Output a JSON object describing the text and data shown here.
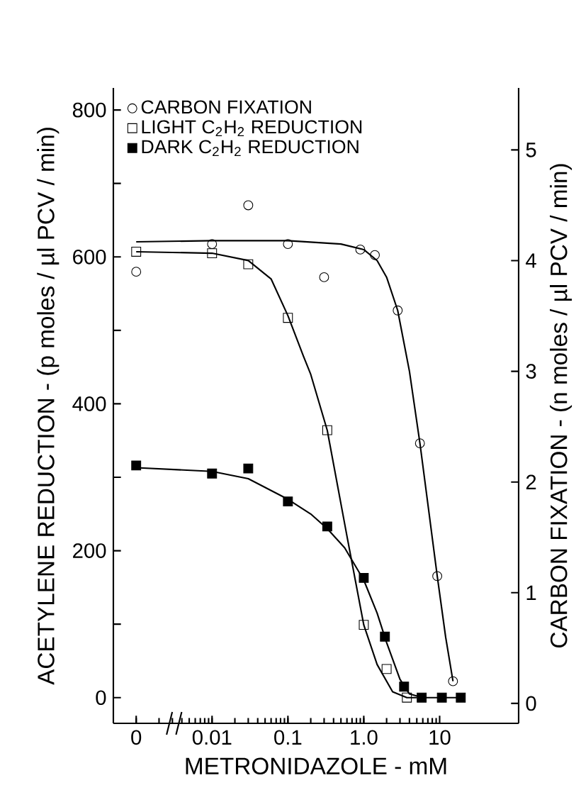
{
  "chart_data": {
    "type": "scatter",
    "xlabel": "METRONIDAZOLE - mM",
    "ylabel": "ACETYLENE REDUCTION - (p moles / µl PCV / min)",
    "y2label": "CARBON FIXATION - (n moles / µl PCV / min)",
    "log": "x",
    "xlim": [
      0.0005,
      110
    ],
    "xticks": [
      {
        "value": 0.001,
        "label": "0"
      },
      0.01,
      0.1,
      {
        "value": 1.0,
        "label": "1.0"
      },
      10
    ],
    "ylim": [
      -35,
      830
    ],
    "yticks": [
      0,
      {
        "value": 100,
        "label": null
      },
      200,
      {
        "value": 300,
        "label": null
      },
      400,
      {
        "value": 500,
        "label": null
      },
      600,
      {
        "value": 700,
        "label": null
      },
      800
    ],
    "y2lim": [
      -0.18,
      5.56
    ],
    "y2ticks": [
      0,
      1,
      2,
      3,
      4,
      5
    ],
    "legend": "top left",
    "series": [
      {
        "name": "CARBON FIXATION",
        "marker": "circle",
        "axis": "y2",
        "x": [
          0.001,
          0.01,
          0.03,
          0.1,
          0.3,
          0.9,
          1.4,
          2.8,
          5.5,
          9.3,
          15
        ],
        "values": [
          3.9,
          4.15,
          4.5,
          4.15,
          3.85,
          4.1,
          4.05,
          3.55,
          2.35,
          1.15,
          0.2
        ]
      },
      {
        "name": "LIGHT C$_{2}$H$_{2}$ REDUCTION",
        "marker": "square",
        "x": [
          0.001,
          0.01,
          0.03,
          0.1,
          0.33,
          1.0,
          2.0,
          3.7
        ],
        "values": [
          607,
          605,
          590,
          517,
          364,
          99,
          39,
          0
        ]
      },
      {
        "name": "DARK C$_{2}$H$_{2}$ REDUCTION",
        "marker": "square",
        "color": "#000000",
        "x": [
          0.001,
          0.01,
          0.03,
          0.1,
          0.33,
          1.0,
          1.9,
          3.4,
          5.8,
          10.7,
          19
        ],
        "values": [
          316,
          305,
          312,
          267,
          233,
          163,
          83,
          15,
          0,
          0,
          0
        ]
      },
      {
        "type": "line",
        "marker": "none",
        "line_style": "solid",
        "color": "#000000",
        "axis": "y2",
        "x": [
          0.001,
          0.01,
          0.1,
          0.5,
          1.0,
          1.5,
          2.0,
          2.8,
          4,
          5.5,
          7,
          9.3,
          12,
          15
        ],
        "values": [
          4.17,
          4.18,
          4.18,
          4.15,
          4.1,
          4.0,
          3.85,
          3.55,
          3.0,
          2.35,
          1.8,
          1.15,
          0.6,
          0.2
        ]
      },
      {
        "type": "line",
        "marker": "none",
        "line_style": "solid",
        "color": "#000000",
        "x": [
          0.001,
          0.01,
          0.03,
          0.06,
          0.1,
          0.16,
          0.2,
          0.33,
          0.6,
          1.0,
          1.5,
          2.4,
          3.7,
          5
        ],
        "values": [
          607,
          605,
          595,
          570,
          520,
          465,
          440,
          364,
          220,
          99,
          45,
          8,
          0,
          0
        ]
      },
      {
        "type": "line",
        "marker": "none",
        "line_style": "solid",
        "color": "#000000",
        "x": [
          0.001,
          0.01,
          0.03,
          0.1,
          0.2,
          0.33,
          0.56,
          1.0,
          1.5,
          2.0,
          3.0,
          4.0,
          6,
          10,
          20
        ],
        "values": [
          313,
          308,
          298,
          270,
          250,
          230,
          204,
          160,
          115,
          75,
          25,
          5,
          0,
          0,
          0
        ]
      }
    ]
  }
}
